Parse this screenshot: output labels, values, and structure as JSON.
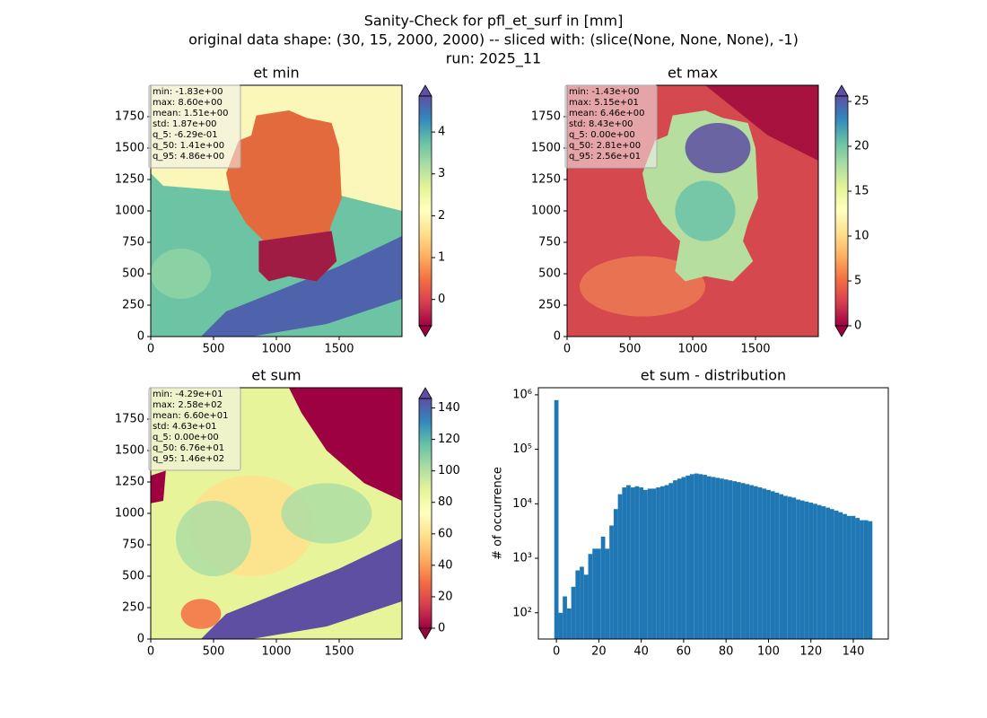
{
  "title": [
    "Sanity-Check for pfl_et_surf in [mm]",
    "original data shape: (30, 15, 2000, 2000) -- sliced with: (slice(None, None, None), -1)",
    "run: 2025_11"
  ],
  "colormap": [
    "#9e0142",
    "#d53e4f",
    "#f46d43",
    "#fdae61",
    "#fee08b",
    "#ffffbf",
    "#e6f598",
    "#abdda4",
    "#66c2a5",
    "#3288bd",
    "#5e4fa2"
  ],
  "chart_data": [
    {
      "type": "heatmap",
      "title": "et min",
      "xlim": [
        0,
        2000
      ],
      "ylim": [
        0,
        2000
      ],
      "xticks": [
        0,
        500,
        1000,
        1500
      ],
      "yticks": [
        0,
        250,
        500,
        750,
        1000,
        1250,
        1500,
        1750
      ],
      "stats": [
        "min: -1.83e+00",
        "max: 8.60e+00",
        "mean: 1.51e+00",
        "std: 1.87e+00",
        "q_5: -6.29e-01",
        "q_50: 1.41e+00",
        "q_95: 4.86e+00"
      ],
      "colorbar": {
        "lim": [
          -0.629,
          4.86
        ],
        "ticks": [
          0,
          1,
          2,
          3,
          4
        ],
        "extend": "both"
      }
    },
    {
      "type": "heatmap",
      "title": "et max",
      "xlim": [
        0,
        2000
      ],
      "ylim": [
        0,
        2000
      ],
      "xticks": [
        0,
        500,
        1000,
        1500
      ],
      "yticks": [
        0,
        250,
        500,
        750,
        1000,
        1250,
        1500,
        1750
      ],
      "stats": [
        "min: -1.43e+00",
        "max: 5.15e+01",
        "mean: 6.46e+00",
        "std: 8.43e+00",
        "q_5: 0.00e+00",
        "q_50: 2.81e+00",
        "q_95: 2.56e+01"
      ],
      "colorbar": {
        "lim": [
          0,
          25.6
        ],
        "ticks": [
          0,
          5,
          10,
          15,
          20,
          25
        ],
        "extend": "both"
      }
    },
    {
      "type": "heatmap",
      "title": "et sum",
      "xlim": [
        0,
        2000
      ],
      "ylim": [
        0,
        2000
      ],
      "xticks": [
        0,
        500,
        1000,
        1500
      ],
      "yticks": [
        0,
        250,
        500,
        750,
        1000,
        1250,
        1500,
        1750
      ],
      "stats": [
        "min: -4.29e+01",
        "max: 2.58e+02",
        "mean: 6.60e+01",
        "std: 4.63e+01",
        "q_5: 0.00e+00",
        "q_50: 6.76e+01",
        "q_95: 1.46e+02"
      ],
      "colorbar": {
        "lim": [
          0,
          146
        ],
        "ticks": [
          0,
          20,
          40,
          60,
          80,
          100,
          120,
          140
        ],
        "extend": "both"
      }
    },
    {
      "type": "histogram",
      "title": "et sum - distribution",
      "ylabel": "# of occurrence",
      "color": "#1f77b4",
      "log_y": true,
      "xlim": [
        -8.5,
        156.5
      ],
      "ylim": [
        33,
        1350000
      ],
      "xticks": [
        0,
        20,
        40,
        60,
        80,
        100,
        120,
        140
      ],
      "yticks": [
        {
          "value": 100,
          "label": "10²"
        },
        {
          "value": 1000,
          "label": "10³"
        },
        {
          "value": 10000,
          "label": "10⁴"
        },
        {
          "value": 100000,
          "label": "10⁵"
        },
        {
          "value": 1000000,
          "label": "10⁶"
        }
      ],
      "bins": [
        -1,
        1,
        3,
        5,
        7,
        9,
        11,
        13,
        15,
        17,
        19,
        21,
        23,
        25,
        27,
        29,
        31,
        33,
        35,
        37,
        39,
        41,
        43,
        45,
        47,
        49,
        51,
        53,
        55,
        57,
        59,
        61,
        63,
        65,
        67,
        69,
        71,
        73,
        75,
        77,
        79,
        81,
        83,
        85,
        87,
        89,
        91,
        93,
        95,
        97,
        99,
        101,
        103,
        105,
        107,
        109,
        111,
        113,
        115,
        117,
        119,
        121,
        123,
        125,
        127,
        129,
        131,
        133,
        135,
        137,
        139,
        141,
        143,
        145,
        147,
        149
      ],
      "counts": [
        800000,
        100,
        200,
        120,
        300,
        600,
        700,
        500,
        1200,
        1500,
        1500,
        2500,
        1500,
        4000,
        8000,
        15000,
        20000,
        22000,
        20000,
        21000,
        20000,
        18000,
        19000,
        19000,
        20000,
        21000,
        22000,
        24000,
        27000,
        29000,
        31000,
        33000,
        35000,
        36000,
        35000,
        34000,
        32000,
        31000,
        30000,
        29000,
        28000,
        27000,
        26000,
        25000,
        24000,
        23000,
        22000,
        21000,
        20000,
        19000,
        18000,
        17000,
        16000,
        15000,
        14000,
        13500,
        13000,
        12000,
        11500,
        11000,
        10500,
        10000,
        9500,
        9000,
        8500,
        8000,
        7500,
        7000,
        6500,
        6000,
        6000,
        5500,
        5000,
        5000,
        4800
      ]
    }
  ]
}
